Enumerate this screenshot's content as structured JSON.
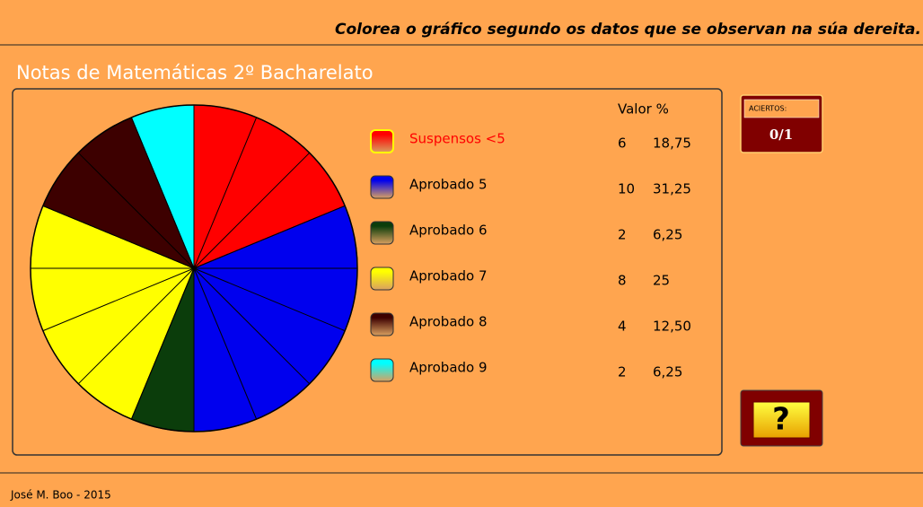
{
  "header": {
    "instruction": "Colorea o gráfico segundo os datos que se observan na súa dereita.",
    "title": "Notas de Matemáticas 2º Bacharelato"
  },
  "chart_data": {
    "type": "pie",
    "column_headers": "Valor %",
    "categories": [
      "Suspensos <5",
      "Aprobado 5",
      "Aprobado 6",
      "Aprobado 7",
      "Aprobado 8",
      "Aprobado 9"
    ],
    "values": [
      6,
      10,
      2,
      8,
      4,
      2
    ],
    "percent_labels": [
      "18,75",
      "31,25",
      "6,25",
      "25",
      "12,50",
      "6,25"
    ],
    "colors": [
      "#ff0000",
      "#0000ee",
      "#0b3d0b",
      "#ffff00",
      "#3d0000",
      "#00ffff"
    ]
  },
  "score": {
    "label": "ACIERTOS:",
    "value": "0/1"
  },
  "help_button": "?",
  "footer": "José M. Boo - 2015"
}
